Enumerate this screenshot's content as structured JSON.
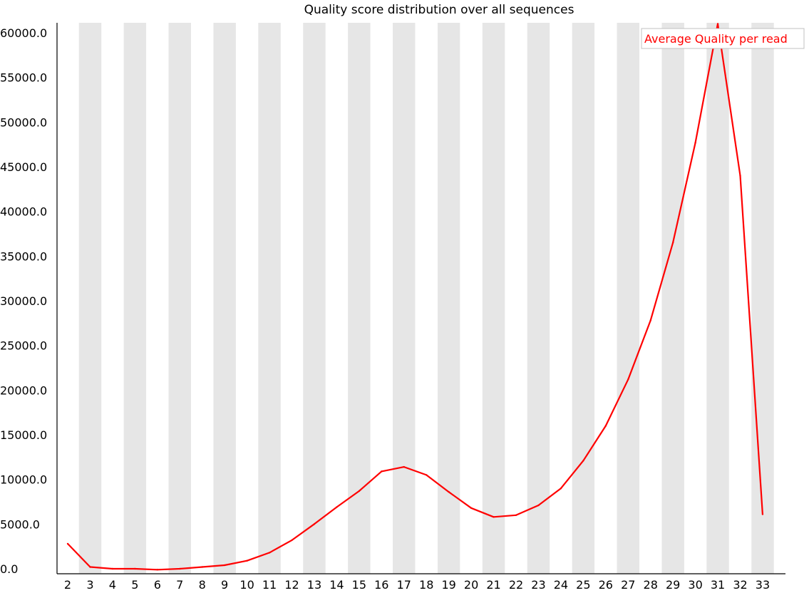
{
  "chart_data": {
    "type": "line",
    "title": "Quality score distribution over all sequences",
    "xlabel": "",
    "ylabel": "",
    "categories": [
      "2",
      "3",
      "4",
      "5",
      "6",
      "7",
      "8",
      "9",
      "10",
      "11",
      "12",
      "13",
      "14",
      "15",
      "16",
      "17",
      "18",
      "19",
      "20",
      "21",
      "22",
      "23",
      "24",
      "25",
      "26",
      "27",
      "28",
      "29",
      "30",
      "31",
      "32",
      "33"
    ],
    "series": [
      {
        "name": "Average Quality per read",
        "color": "#ff0000",
        "values": [
          2800,
          200,
          0,
          0,
          -100,
          0,
          200,
          400,
          900,
          1800,
          3200,
          5000,
          6900,
          8700,
          10900,
          11400,
          10500,
          8600,
          6800,
          5800,
          6000,
          7100,
          9000,
          12100,
          16000,
          21200,
          27800,
          36500,
          47700,
          61000,
          44000,
          6100
        ]
      }
    ],
    "y_ticks": [
      "0.0",
      "5000.0",
      "10000.0",
      "15000.0",
      "20000.0",
      "25000.0",
      "30000.0",
      "35000.0",
      "40000.0",
      "45000.0",
      "50000.0",
      "55000.0",
      "60000.0"
    ],
    "ylim": [
      0,
      61000
    ],
    "grid": false,
    "alternating_bands": true,
    "band_color": "#e6e6e6",
    "legend_position": "top-right"
  }
}
